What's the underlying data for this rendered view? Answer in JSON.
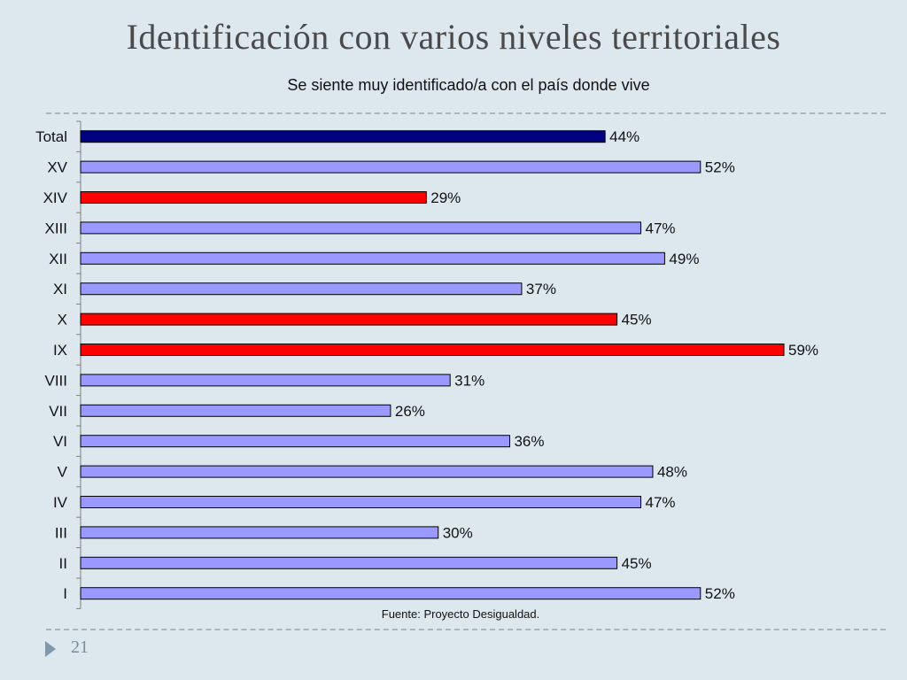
{
  "slide": {
    "title": "Identificación con varios niveles territoriales",
    "source": "Fuente: Proyecto Desigualdad.",
    "page_number": "21"
  },
  "colors": {
    "background": "#dde8ee",
    "total_bar": "#000080",
    "default_bar": "#9999ff",
    "highlight_bar": "#ff0000"
  },
  "chart_data": {
    "type": "bar",
    "orientation": "horizontal",
    "title": "Se siente muy identificado/a con el país donde vive",
    "xlabel": "",
    "ylabel": "",
    "grid": false,
    "value_format": "percent",
    "xlim": [
      0,
      100
    ],
    "categories": [
      "Total",
      "XV",
      "XIV",
      "XIII",
      "XII",
      "XI",
      "X",
      "IX",
      "VIII",
      "VII",
      "VI",
      "V",
      "IV",
      "III",
      "II",
      "I"
    ],
    "values": [
      44,
      52,
      29,
      47,
      49,
      37,
      45,
      59,
      31,
      26,
      36,
      48,
      47,
      30,
      45,
      52
    ],
    "bar_colors": [
      "total_bar",
      "default_bar",
      "highlight_bar",
      "default_bar",
      "default_bar",
      "default_bar",
      "highlight_bar",
      "highlight_bar",
      "default_bar",
      "default_bar",
      "default_bar",
      "default_bar",
      "default_bar",
      "default_bar",
      "default_bar",
      "default_bar"
    ]
  }
}
